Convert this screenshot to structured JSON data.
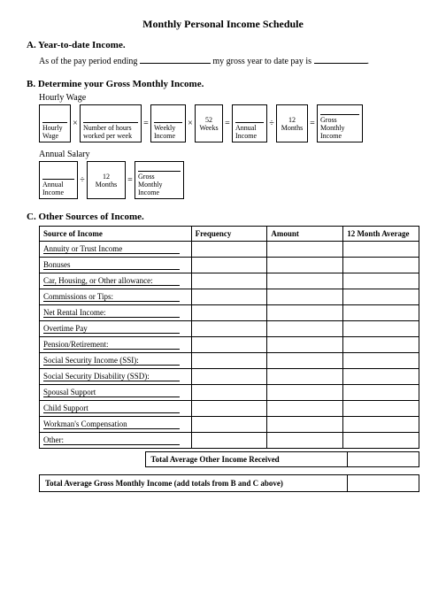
{
  "title": "Monthly Personal Income Schedule",
  "sectionA": {
    "head": "A. Year-to-date Income.",
    "text1": "As of the pay period ending",
    "text2": "my gross year to date pay is"
  },
  "sectionB": {
    "head": "B. Determine your Gross Monthly Income.",
    "hourlyLabel": "Hourly Wage",
    "annualLabel": "Annual Salary",
    "boxes": {
      "hourly_wage": "Hourly Wage",
      "hours": "Number of hours worked per week",
      "weekly": "Weekly Income",
      "weeks": "52 Weeks",
      "annual": "Annual Income",
      "months": "12 Months",
      "gross": "Gross Monthly Income"
    }
  },
  "sectionC": {
    "head": "C. Other Sources of Income.",
    "headers": {
      "source": "Source of Income",
      "freq": "Frequency",
      "amount": "Amount",
      "avg": "12 Month Average"
    },
    "rows": [
      "Annuity or Trust Income",
      "Bonuses",
      "Car, Housing, or Other allowance:",
      "Commissions or Tips:",
      "Net Rental Income:",
      "Overtime Pay",
      "Pension/Retirement:",
      "Social Security Income (SSI):",
      "Social Security Disability (SSD):",
      "Spousal Support",
      "Child Support",
      "Workman's Compensation",
      "Other:"
    ],
    "totalOther": "Total Average Other Income Received",
    "grandTotal": "Total Average Gross Monthly Income (add totals from B and C above)"
  }
}
